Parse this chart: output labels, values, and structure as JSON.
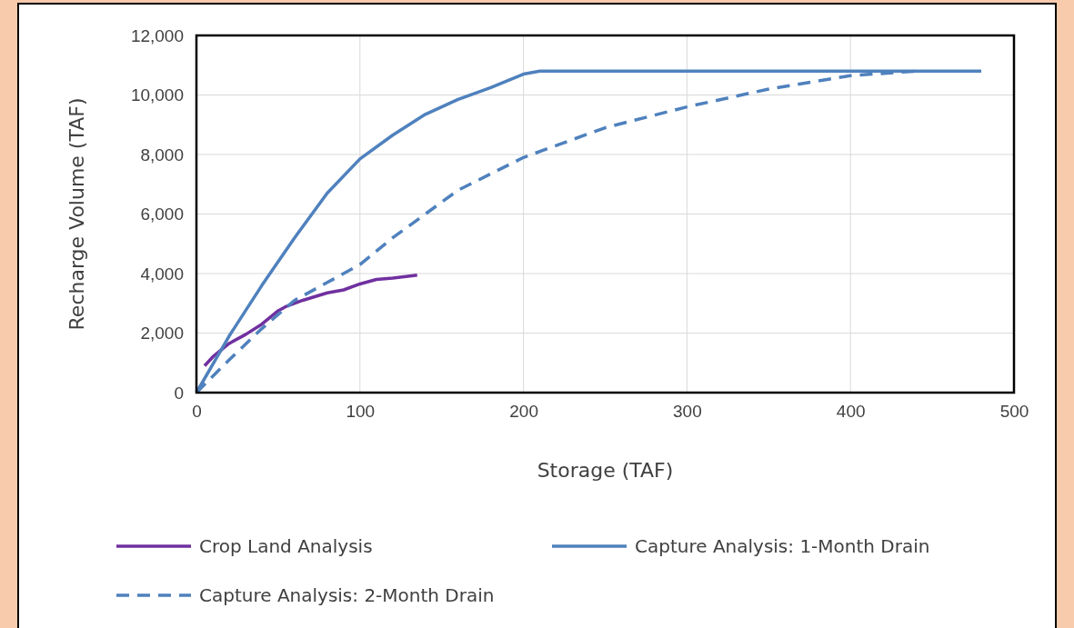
{
  "chart_data": {
    "type": "line",
    "xlabel": "Storage (TAF)",
    "ylabel": "Recharge Volume (TAF)",
    "xlim": [
      0,
      500
    ],
    "xticks": [
      0,
      100,
      200,
      300,
      400,
      500
    ],
    "ylim": [
      0,
      12000
    ],
    "yticks": [
      {
        "value": 0,
        "label": "0"
      },
      {
        "value": 2000,
        "label": "2,000"
      },
      {
        "value": 4000,
        "label": "4,000"
      },
      {
        "value": 6000,
        "label": "6,000"
      },
      {
        "value": 8000,
        "label": "8,000"
      },
      {
        "value": 10000,
        "label": "10,000"
      },
      {
        "value": 12000,
        "label": "12,000"
      }
    ],
    "grid": true,
    "legend": "bottom",
    "series": [
      {
        "name": "Crop Land Analysis",
        "color": "#7030a0",
        "line_style": "solid",
        "x": [
          5,
          10,
          20,
          30,
          40,
          50,
          55,
          65,
          80,
          90,
          100,
          110,
          120,
          135
        ],
        "values": [
          900,
          1200,
          1650,
          1950,
          2300,
          2750,
          2900,
          3100,
          3350,
          3450,
          3650,
          3800,
          3850,
          3950
        ]
      },
      {
        "name": "Capture Analysis: 1-Month Drain",
        "color": "#4f81bd",
        "line_style": "solid",
        "x": [
          0,
          20,
          40,
          60,
          80,
          100,
          120,
          140,
          160,
          180,
          200,
          210,
          480
        ],
        "values": [
          0,
          1900,
          3600,
          5200,
          6700,
          7850,
          8650,
          9350,
          9850,
          10250,
          10700,
          10800,
          10800
        ]
      },
      {
        "name": "Capture Analysis: 2-Month Drain",
        "color": "#4f81bd",
        "line_style": "dashed",
        "x": [
          0,
          20,
          40,
          60,
          80,
          100,
          120,
          140,
          160,
          200,
          250,
          300,
          350,
          400,
          440
        ],
        "values": [
          0,
          1100,
          2150,
          3100,
          3700,
          4300,
          5200,
          6000,
          6800,
          7900,
          8900,
          9600,
          10200,
          10650,
          10800
        ]
      }
    ]
  }
}
